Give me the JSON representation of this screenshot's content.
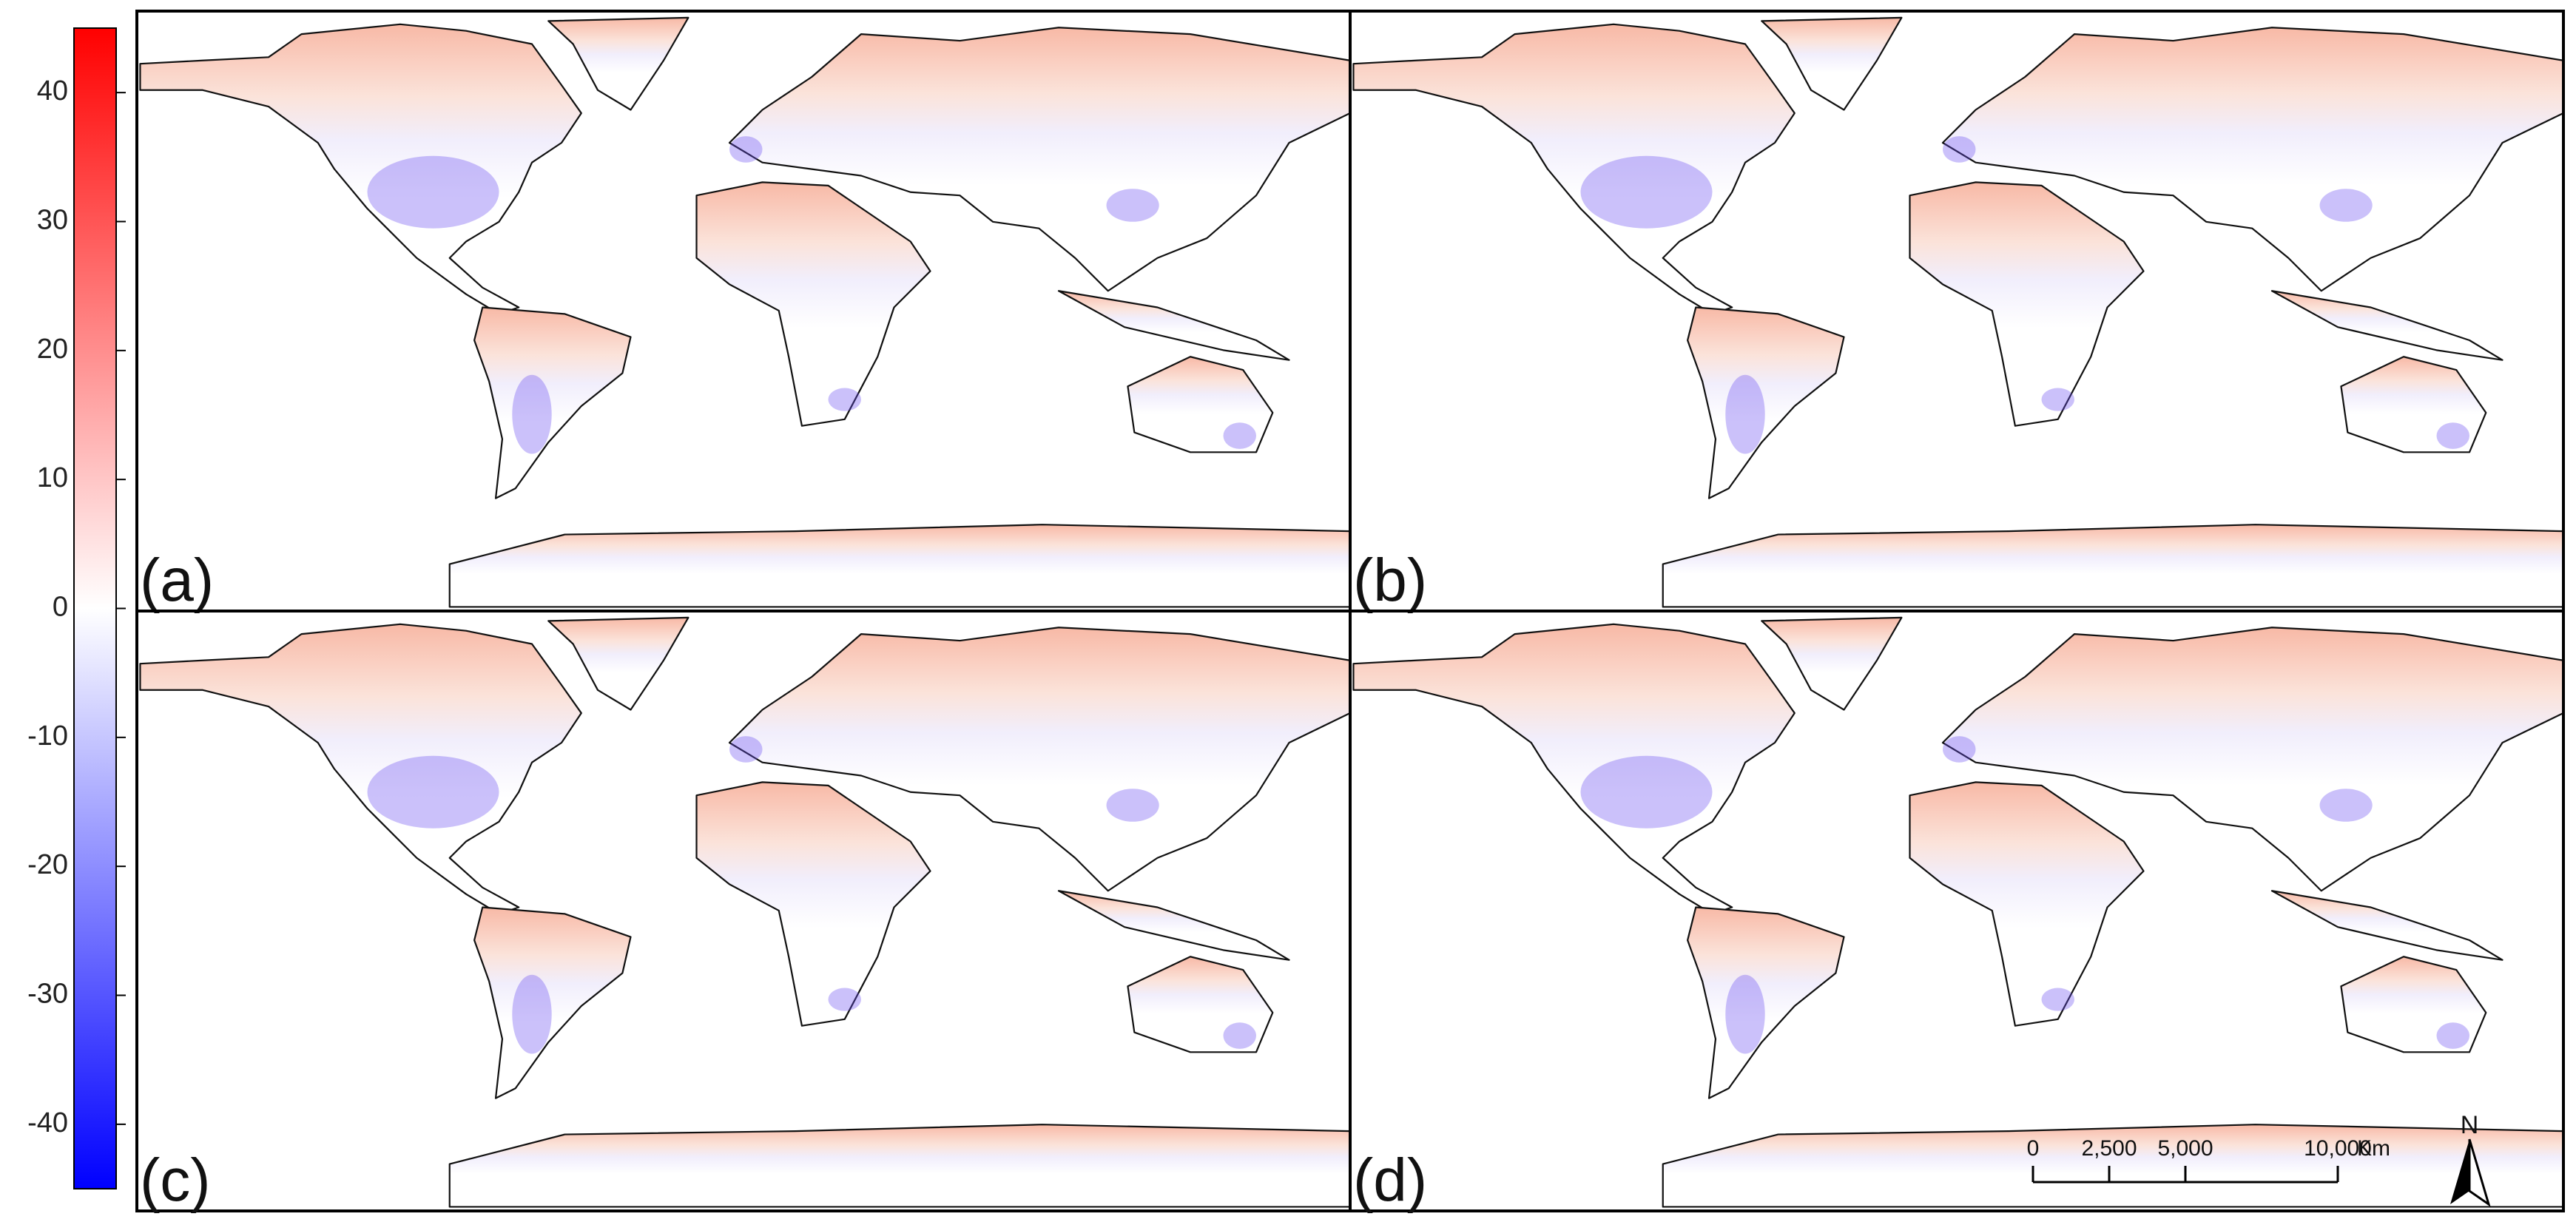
{
  "colorbar": {
    "lim": [
      -45,
      45
    ],
    "ticks": [
      40,
      30,
      20,
      10,
      0,
      -10,
      -20,
      -30,
      -40
    ]
  },
  "panels": [
    {
      "label": "(a)"
    },
    {
      "label": "(b)"
    },
    {
      "label": "(c)"
    },
    {
      "label": "(d)"
    }
  ],
  "scale_bar": {
    "ticks": [
      {
        "value": 0,
        "label": "0"
      },
      {
        "value": 2500,
        "label": "2,500"
      },
      {
        "value": 5000,
        "label": "5,000"
      },
      {
        "value": 10000,
        "label": "10,000"
      }
    ],
    "unit": "Km"
  },
  "north_arrow": {
    "label": "N"
  }
}
